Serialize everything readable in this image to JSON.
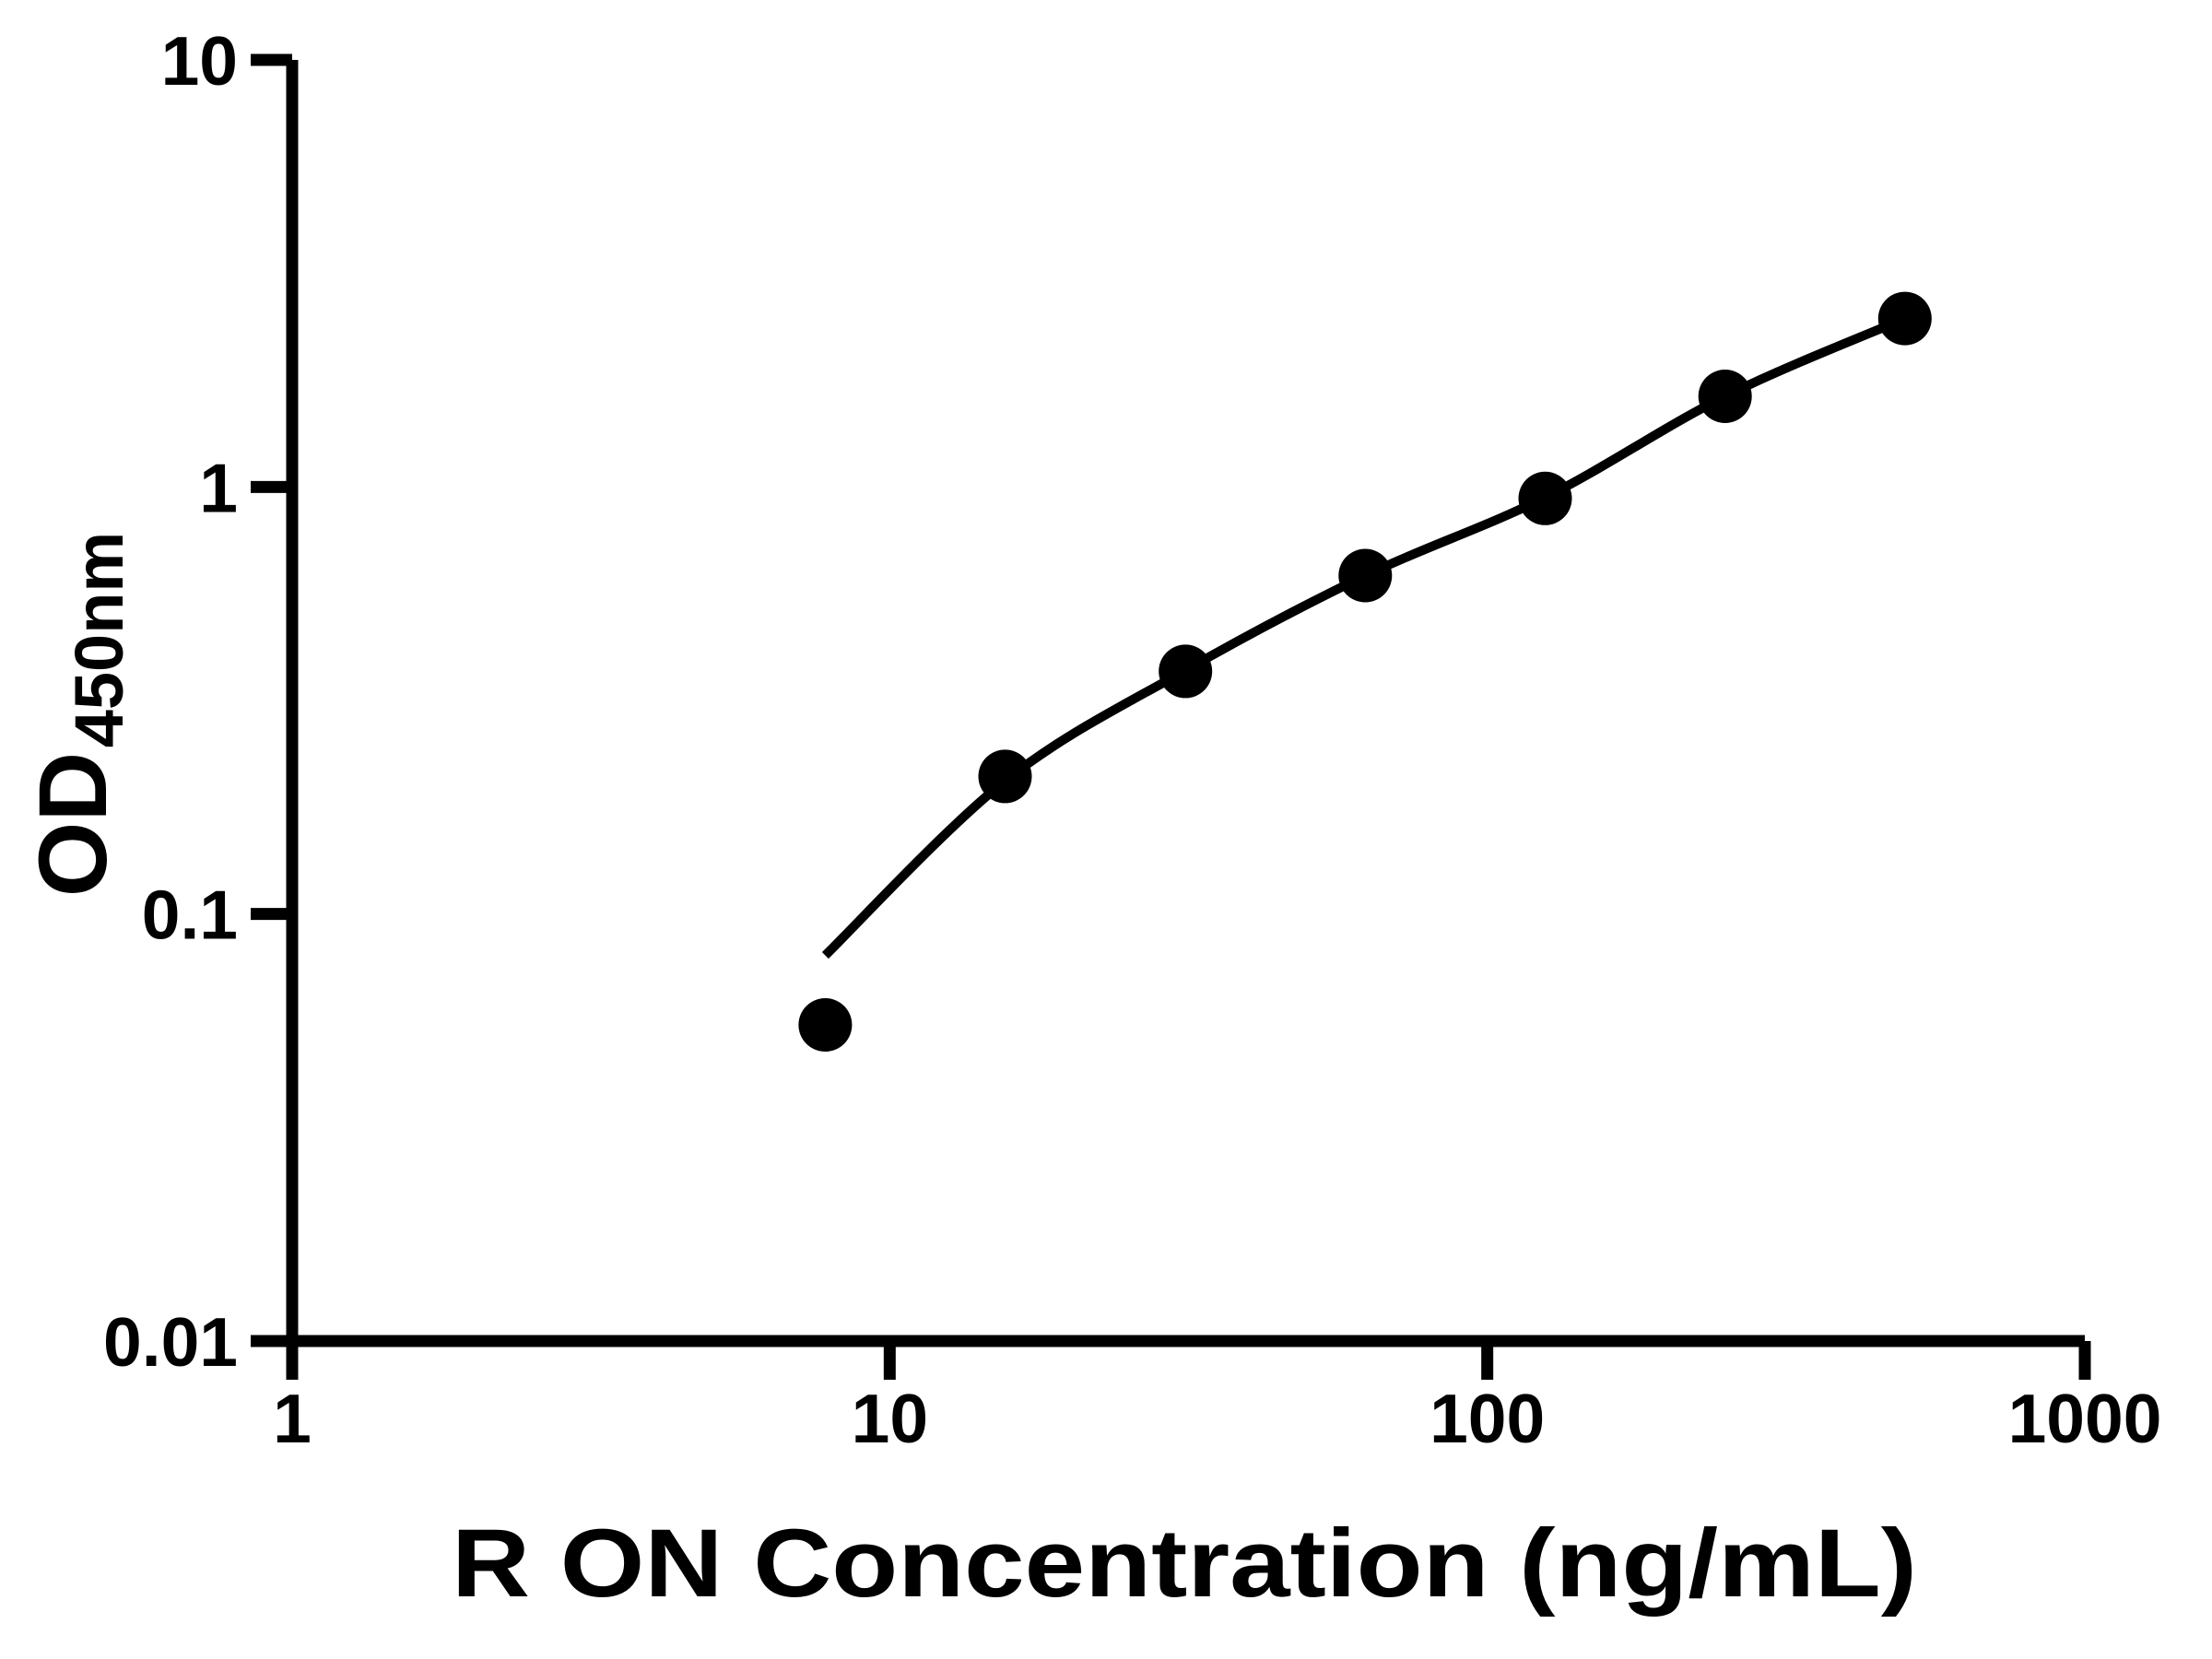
{
  "chart_data": {
    "type": "scatter",
    "title": "",
    "xlabel": "R ON Concentration (ng/mL)",
    "ylabel": {
      "main": "OD",
      "subscript": "450nm"
    },
    "x_scale": "log",
    "y_scale": "log",
    "xlim": [
      1,
      1000
    ],
    "ylim": [
      0.01,
      10
    ],
    "grid": false,
    "legend": null,
    "x_ticks": [
      {
        "value": 1,
        "label": "1"
      },
      {
        "value": 10,
        "label": "10"
      },
      {
        "value": 100,
        "label": "100"
      },
      {
        "value": 1000,
        "label": "1000"
      }
    ],
    "y_ticks": [
      {
        "value": 10,
        "label": "10"
      },
      {
        "value": 1,
        "label": "1"
      },
      {
        "value": 0.1,
        "label": "0.1"
      },
      {
        "value": 0.01,
        "label": "0.01"
      }
    ],
    "series": [
      {
        "name": "standard-curve-points",
        "type": "scatter",
        "marker": "filled-circle",
        "x": [
          7.8,
          15.6,
          31.25,
          62.5,
          125,
          250,
          500
        ],
        "y": [
          0.055,
          0.21,
          0.37,
          0.62,
          0.94,
          1.63,
          2.48
        ]
      }
    ],
    "fit_curve": {
      "name": "fitted-curve",
      "x": [
        7.8,
        15.6,
        31.25,
        62.5,
        125,
        250,
        500
      ],
      "y": [
        0.08,
        0.205,
        0.372,
        0.62,
        0.945,
        1.63,
        2.48
      ]
    },
    "colors": {
      "foreground": "#000000",
      "background": "#ffffff"
    }
  }
}
